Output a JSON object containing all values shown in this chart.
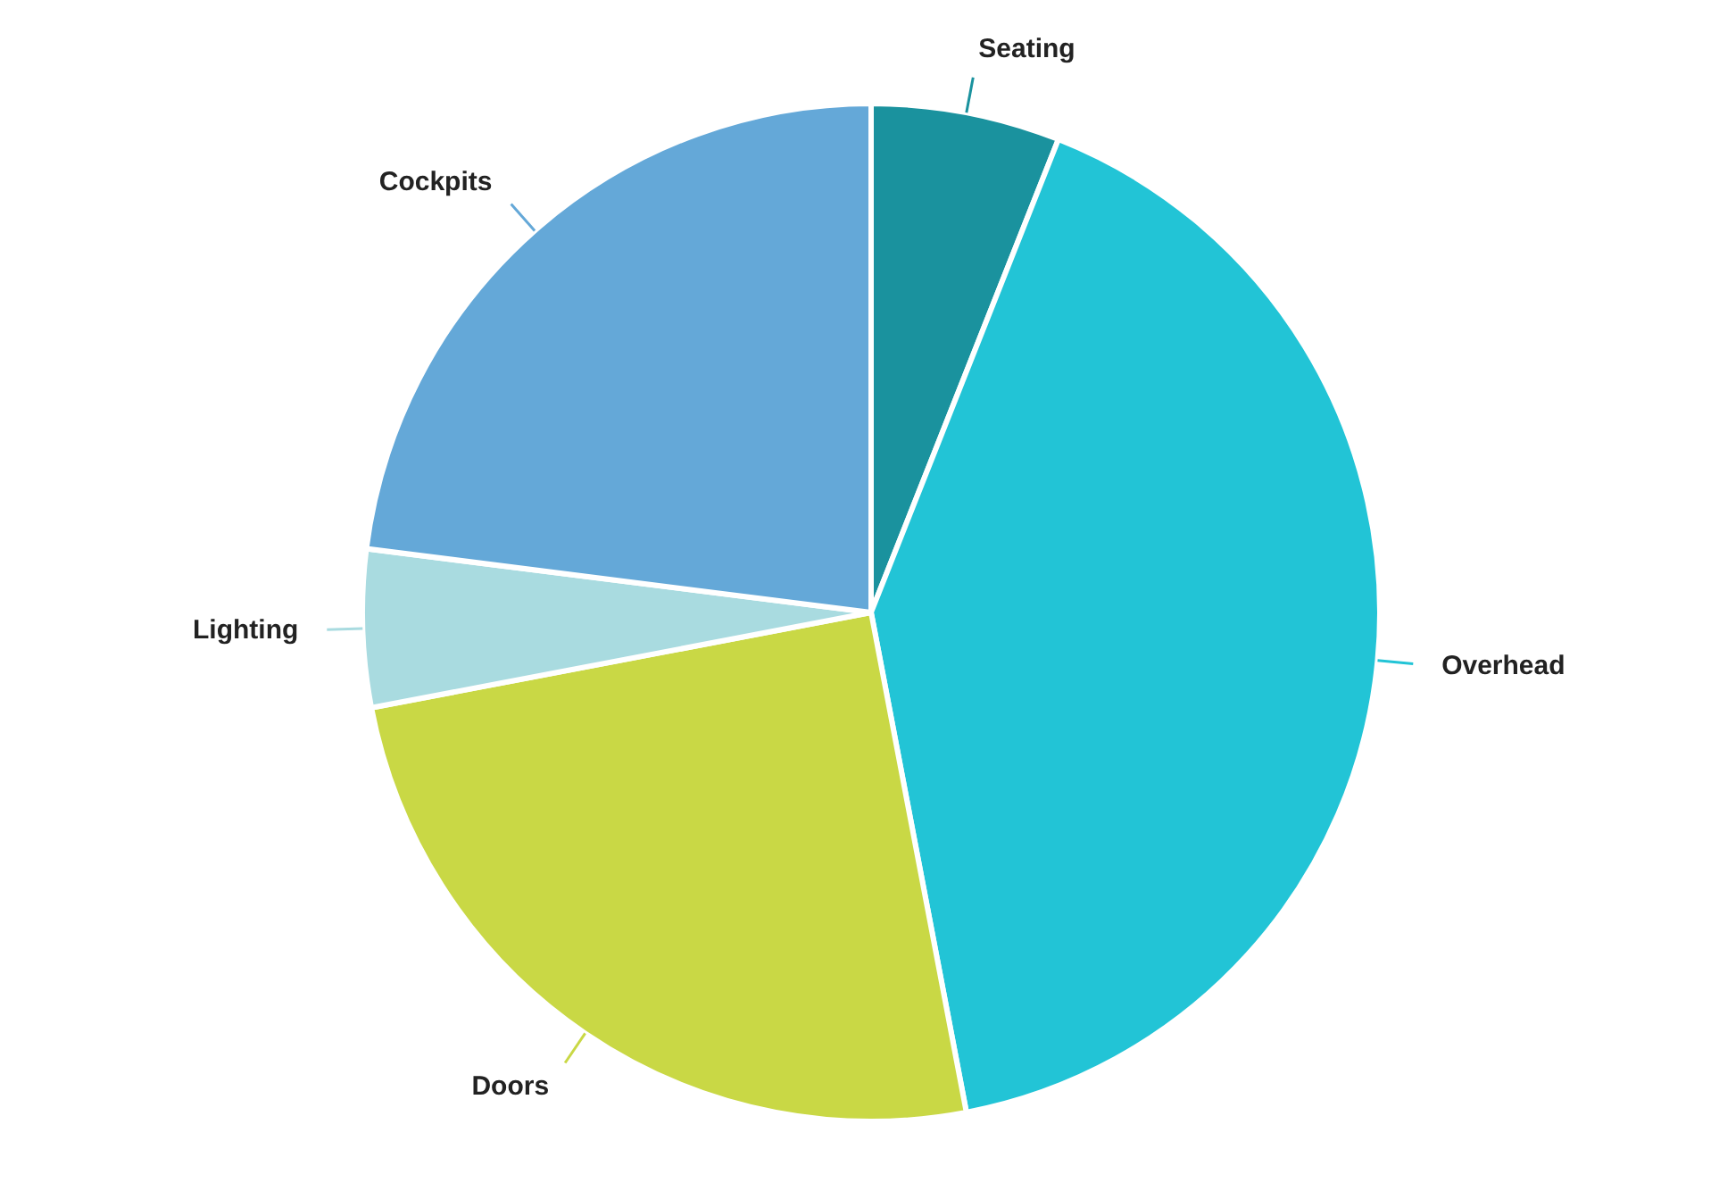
{
  "chart_data": {
    "type": "pie",
    "categories": [
      "Seating",
      "Overhead",
      "Doors",
      "Lighting",
      "Cockpits"
    ],
    "values": [
      6,
      41,
      25,
      5,
      23
    ],
    "colors": [
      "#1a929e",
      "#22c4d6",
      "#c9d845",
      "#a9dbe0",
      "#64a8d8"
    ]
  }
}
